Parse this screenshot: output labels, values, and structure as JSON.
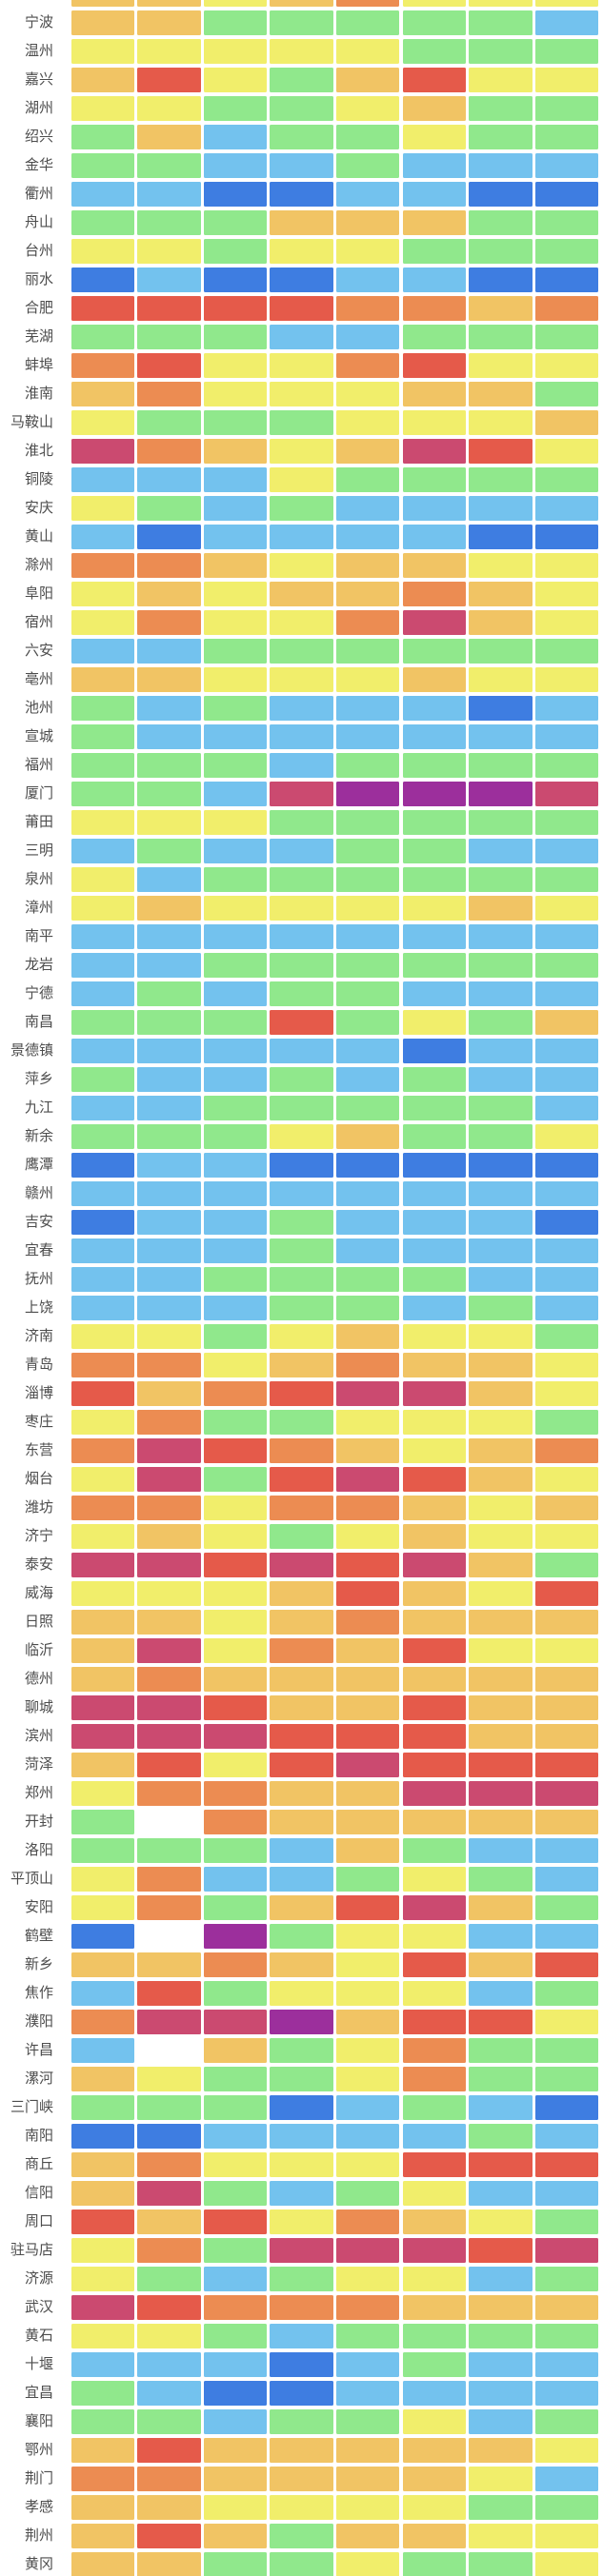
{
  "chart_data": {
    "type": "heatmap",
    "title": "",
    "xlabel": "",
    "ylabel": "",
    "legend": "none",
    "grid": "white gaps between cells",
    "columns": 8,
    "note_top_row_is_cut_off_sliver_without_visible_label": true,
    "palette": {
      "B": "#3e7de1",
      "b": "#73c2ee",
      "G": "#90e88c",
      "Y": "#f1ee6b",
      "A": "#f1c464",
      "O": "#ec8c52",
      "R": "#e55a4a",
      "C": "#cb4a70",
      "P": "#9c2f9c",
      "W": "#ffffff"
    },
    "palette_legend_meaning": {
      "B": "dark-blue",
      "b": "light-blue",
      "G": "green",
      "Y": "yellow",
      "A": "amber",
      "O": "orange",
      "R": "red-orange",
      "C": "crimson",
      "P": "purple",
      "W": "white-missing"
    },
    "rows": [
      {
        "label": "",
        "cells": "AAYAOYYY"
      },
      {
        "label": "宁波",
        "cells": "AAGGGGGb"
      },
      {
        "label": "温州",
        "cells": "YYYYYGGG"
      },
      {
        "label": "嘉兴",
        "cells": "ARYGARYY"
      },
      {
        "label": "湖州",
        "cells": "YYGGYAGG"
      },
      {
        "label": "绍兴",
        "cells": "GAbGGYGG"
      },
      {
        "label": "金华",
        "cells": "GGbbGbbb"
      },
      {
        "label": "衢州",
        "cells": "bbBBbbBB"
      },
      {
        "label": "舟山",
        "cells": "GGGAAAGG"
      },
      {
        "label": "台州",
        "cells": "YYGYYGGG"
      },
      {
        "label": "丽水",
        "cells": "BbBBbbBB"
      },
      {
        "label": "合肥",
        "cells": "RRRROOAO"
      },
      {
        "label": "芜湖",
        "cells": "GGGbbGGG"
      },
      {
        "label": "蚌埠",
        "cells": "ORYYORYY"
      },
      {
        "label": "淮南",
        "cells": "AOYYYAAG"
      },
      {
        "label": "马鞍山",
        "cells": "YGGGYYYA"
      },
      {
        "label": "淮北",
        "cells": "COAYACRY"
      },
      {
        "label": "铜陵",
        "cells": "bbbYGGGG"
      },
      {
        "label": "安庆",
        "cells": "YGbGbbbb"
      },
      {
        "label": "黄山",
        "cells": "bBbbbbBB"
      },
      {
        "label": "滁州",
        "cells": "OOAYAAYY"
      },
      {
        "label": "阜阳",
        "cells": "YAYAAOAY"
      },
      {
        "label": "宿州",
        "cells": "YOYYOCAY"
      },
      {
        "label": "六安",
        "cells": "bbGGGGGG"
      },
      {
        "label": "亳州",
        "cells": "AAYYYAYY"
      },
      {
        "label": "池州",
        "cells": "GbGbbbBb"
      },
      {
        "label": "宣城",
        "cells": "Gbbbbbbb"
      },
      {
        "label": "福州",
        "cells": "GGGbGGGG"
      },
      {
        "label": "厦门",
        "cells": "GGbCPPPC"
      },
      {
        "label": "莆田",
        "cells": "YYYGGGGG"
      },
      {
        "label": "三明",
        "cells": "bGbbGGbb"
      },
      {
        "label": "泉州",
        "cells": "YbGGGGGG"
      },
      {
        "label": "漳州",
        "cells": "YAYYYYAY"
      },
      {
        "label": "南平",
        "cells": "bbbbbbbb"
      },
      {
        "label": "龙岩",
        "cells": "bbGGGGGG"
      },
      {
        "label": "宁德",
        "cells": "bGbGGbbb"
      },
      {
        "label": "南昌",
        "cells": "GGGRGYGA"
      },
      {
        "label": "景德镇",
        "cells": "bbbbbBbb"
      },
      {
        "label": "萍乡",
        "cells": "GbbGbGbb"
      },
      {
        "label": "九江",
        "cells": "bbGGGGGb"
      },
      {
        "label": "新余",
        "cells": "GGGYAGGY"
      },
      {
        "label": "鹰潭",
        "cells": "BbbBBBBB"
      },
      {
        "label": "赣州",
        "cells": "bbbbbbbb"
      },
      {
        "label": "吉安",
        "cells": "BbbGbbbB"
      },
      {
        "label": "宜春",
        "cells": "bbbGbbbb"
      },
      {
        "label": "抚州",
        "cells": "bbGGGGbb"
      },
      {
        "label": "上饶",
        "cells": "bbbGGbGb"
      },
      {
        "label": "济南",
        "cells": "YYGYAYYG"
      },
      {
        "label": "青岛",
        "cells": "OOYAOAAY"
      },
      {
        "label": "淄博",
        "cells": "RAORCCAY"
      },
      {
        "label": "枣庄",
        "cells": "YOGGYYYG"
      },
      {
        "label": "东营",
        "cells": "OCROAYAO"
      },
      {
        "label": "烟台",
        "cells": "YCGRCRAY"
      },
      {
        "label": "潍坊",
        "cells": "OOYOOAYA"
      },
      {
        "label": "济宁",
        "cells": "YAYGYAYY"
      },
      {
        "label": "泰安",
        "cells": "CCRCRCAG"
      },
      {
        "label": "威海",
        "cells": "YYYARAYR"
      },
      {
        "label": "日照",
        "cells": "AAYAOAAA"
      },
      {
        "label": "临沂",
        "cells": "ACYOARYY"
      },
      {
        "label": "德州",
        "cells": "AOAAAAAA"
      },
      {
        "label": "聊城",
        "cells": "CCRAARAA"
      },
      {
        "label": "滨州",
        "cells": "CCCRRRAA"
      },
      {
        "label": "菏泽",
        "cells": "ARYRCRRR"
      },
      {
        "label": "郑州",
        "cells": "YOOAACCC"
      },
      {
        "label": "开封",
        "cells": "GWOAAAAA"
      },
      {
        "label": "洛阳",
        "cells": "GGGbAGbb"
      },
      {
        "label": "平顶山",
        "cells": "YObbGYGb"
      },
      {
        "label": "安阳",
        "cells": "YOGARCAG"
      },
      {
        "label": "鹤壁",
        "cells": "BWPGYYbb"
      },
      {
        "label": "新乡",
        "cells": "AAOAYRAR"
      },
      {
        "label": "焦作",
        "cells": "bRGYYYbG"
      },
      {
        "label": "濮阳",
        "cells": "OCCPARRY"
      },
      {
        "label": "许昌",
        "cells": "bWAGYOGG"
      },
      {
        "label": "漯河",
        "cells": "AYGGYOGG"
      },
      {
        "label": "三门峡",
        "cells": "GGGBbGbB"
      },
      {
        "label": "南阳",
        "cells": "BBbbbbGb"
      },
      {
        "label": "商丘",
        "cells": "AOYYYRRR"
      },
      {
        "label": "信阳",
        "cells": "ACGbGYbb"
      },
      {
        "label": "周口",
        "cells": "RARYOAYG"
      },
      {
        "label": "驻马店",
        "cells": "YOGCCCRC"
      },
      {
        "label": "济源",
        "cells": "YGbGYYbG"
      },
      {
        "label": "武汉",
        "cells": "CROOOAAA"
      },
      {
        "label": "黄石",
        "cells": "YYGbGGGG"
      },
      {
        "label": "十堰",
        "cells": "bbbBbGbb"
      },
      {
        "label": "宜昌",
        "cells": "GbBBbbbb"
      },
      {
        "label": "襄阳",
        "cells": "GGbGGYbG"
      },
      {
        "label": "鄂州",
        "cells": "ARAAAAAY"
      },
      {
        "label": "荆门",
        "cells": "OOAAAAYb"
      },
      {
        "label": "孝感",
        "cells": "AAYYYYGG"
      },
      {
        "label": "荆州",
        "cells": "ARAGAAYY"
      },
      {
        "label": "黄冈",
        "cells": "AAGGYGGY"
      }
    ]
  }
}
